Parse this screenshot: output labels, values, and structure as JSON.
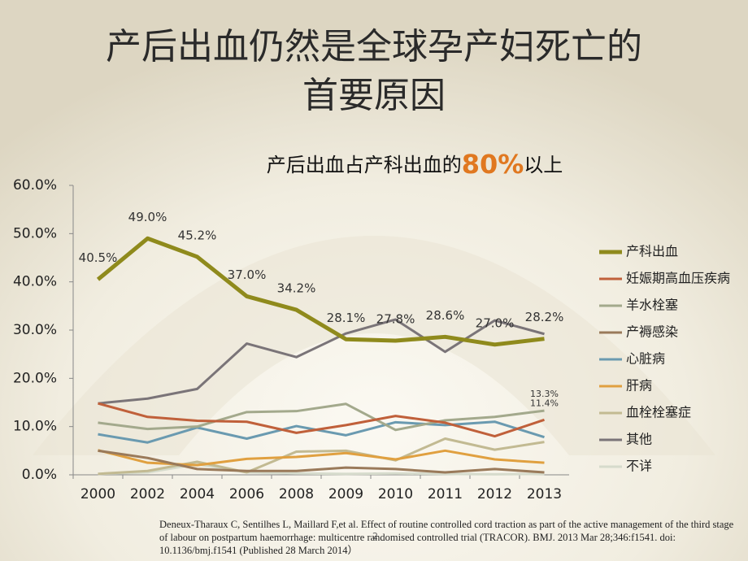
{
  "title_lines": [
    "产后出血仍然是全球孕产妇死亡的",
    "首要原因"
  ],
  "subtitle": {
    "before": "产后出血占产科出血的",
    "highlight": "80%",
    "after": "以上"
  },
  "footnote": "Deneux-Tharaux C, Sentilhes L, Maillard F,et al. Effect of routine controlled cord traction as part of the active management of the third stage of labour on postpartum haemorrhage: multicentre randomised controlled trial (TRACOR). BMJ. 2013 Mar 28;346:f1541. doi: 10.1136/bmj.f1541 (Published 28 March 2014）",
  "page_number": "2",
  "chart_data": {
    "type": "line",
    "categories": [
      "2000",
      "2002",
      "2004",
      "2006",
      "2008",
      "2009",
      "2010",
      "2011",
      "2012",
      "2013"
    ],
    "ylim": [
      0,
      60
    ],
    "yticks": [
      {
        "value": 0,
        "label": "0.0%"
      },
      {
        "value": 10,
        "label": "10.0%"
      },
      {
        "value": 20,
        "label": "20.0%"
      },
      {
        "value": 30,
        "label": "30.0%"
      },
      {
        "value": 40,
        "label": "40.0%"
      },
      {
        "value": 50,
        "label": "50.0%"
      },
      {
        "value": 60,
        "label": "60.0%"
      }
    ],
    "grid": false,
    "legend": "right",
    "series": [
      {
        "name": "产科出血",
        "color": "#8f8a1c",
        "values": [
          40.5,
          49.0,
          45.2,
          37.0,
          34.2,
          28.1,
          27.8,
          28.6,
          27.0,
          28.2
        ],
        "value_labels": [
          "40.5%",
          "49.0%",
          "45.2%",
          "37.0%",
          "34.2%",
          "28.1%",
          "27.8%",
          "28.6%",
          "27.0%",
          "28.2%"
        ]
      },
      {
        "name": "妊娠期高血压疾病",
        "color": "#c0603a",
        "values": [
          14.8,
          12.0,
          11.2,
          11.0,
          8.7,
          10.3,
          12.2,
          10.8,
          8.0,
          11.4
        ],
        "value_labels": [
          null,
          null,
          null,
          null,
          null,
          null,
          null,
          null,
          null,
          "11.4%"
        ]
      },
      {
        "name": "羊水栓塞",
        "color": "#a3a98c",
        "values": [
          10.8,
          9.5,
          10.0,
          13.0,
          13.2,
          14.7,
          9.3,
          11.3,
          12.0,
          13.3
        ],
        "value_labels": [
          null,
          null,
          null,
          null,
          null,
          null,
          null,
          null,
          null,
          "13.3%"
        ]
      },
      {
        "name": "产褥感染",
        "color": "#9a7a5a",
        "values": [
          5.0,
          3.5,
          1.2,
          0.8,
          0.8,
          1.5,
          1.2,
          0.5,
          1.2,
          0.5
        ]
      },
      {
        "name": "心脏病",
        "color": "#6a9ab0",
        "values": [
          8.4,
          6.7,
          9.8,
          7.5,
          10.1,
          8.2,
          10.9,
          10.3,
          11.0,
          7.8
        ]
      },
      {
        "name": "肝病",
        "color": "#e0a040",
        "values": [
          5.1,
          2.5,
          2.0,
          3.3,
          3.7,
          4.5,
          3.2,
          5.0,
          3.2,
          2.5
        ]
      },
      {
        "name": "血栓栓塞症",
        "color": "#c2ba92",
        "values": [
          0.2,
          0.8,
          2.7,
          0.5,
          4.8,
          5.0,
          3.0,
          7.5,
          5.2,
          6.8
        ]
      },
      {
        "name": "其他",
        "color": "#7a7478",
        "values": [
          14.8,
          15.8,
          17.8,
          27.2,
          24.4,
          29.3,
          32.2,
          25.5,
          32.0,
          29.2
        ]
      },
      {
        "name": "不详",
        "color": "#d6dbcc",
        "values": [
          0.2,
          0.5,
          2.2,
          0.5,
          0.3,
          0.2,
          0.3,
          0.2,
          0.1,
          0.2
        ]
      }
    ]
  }
}
